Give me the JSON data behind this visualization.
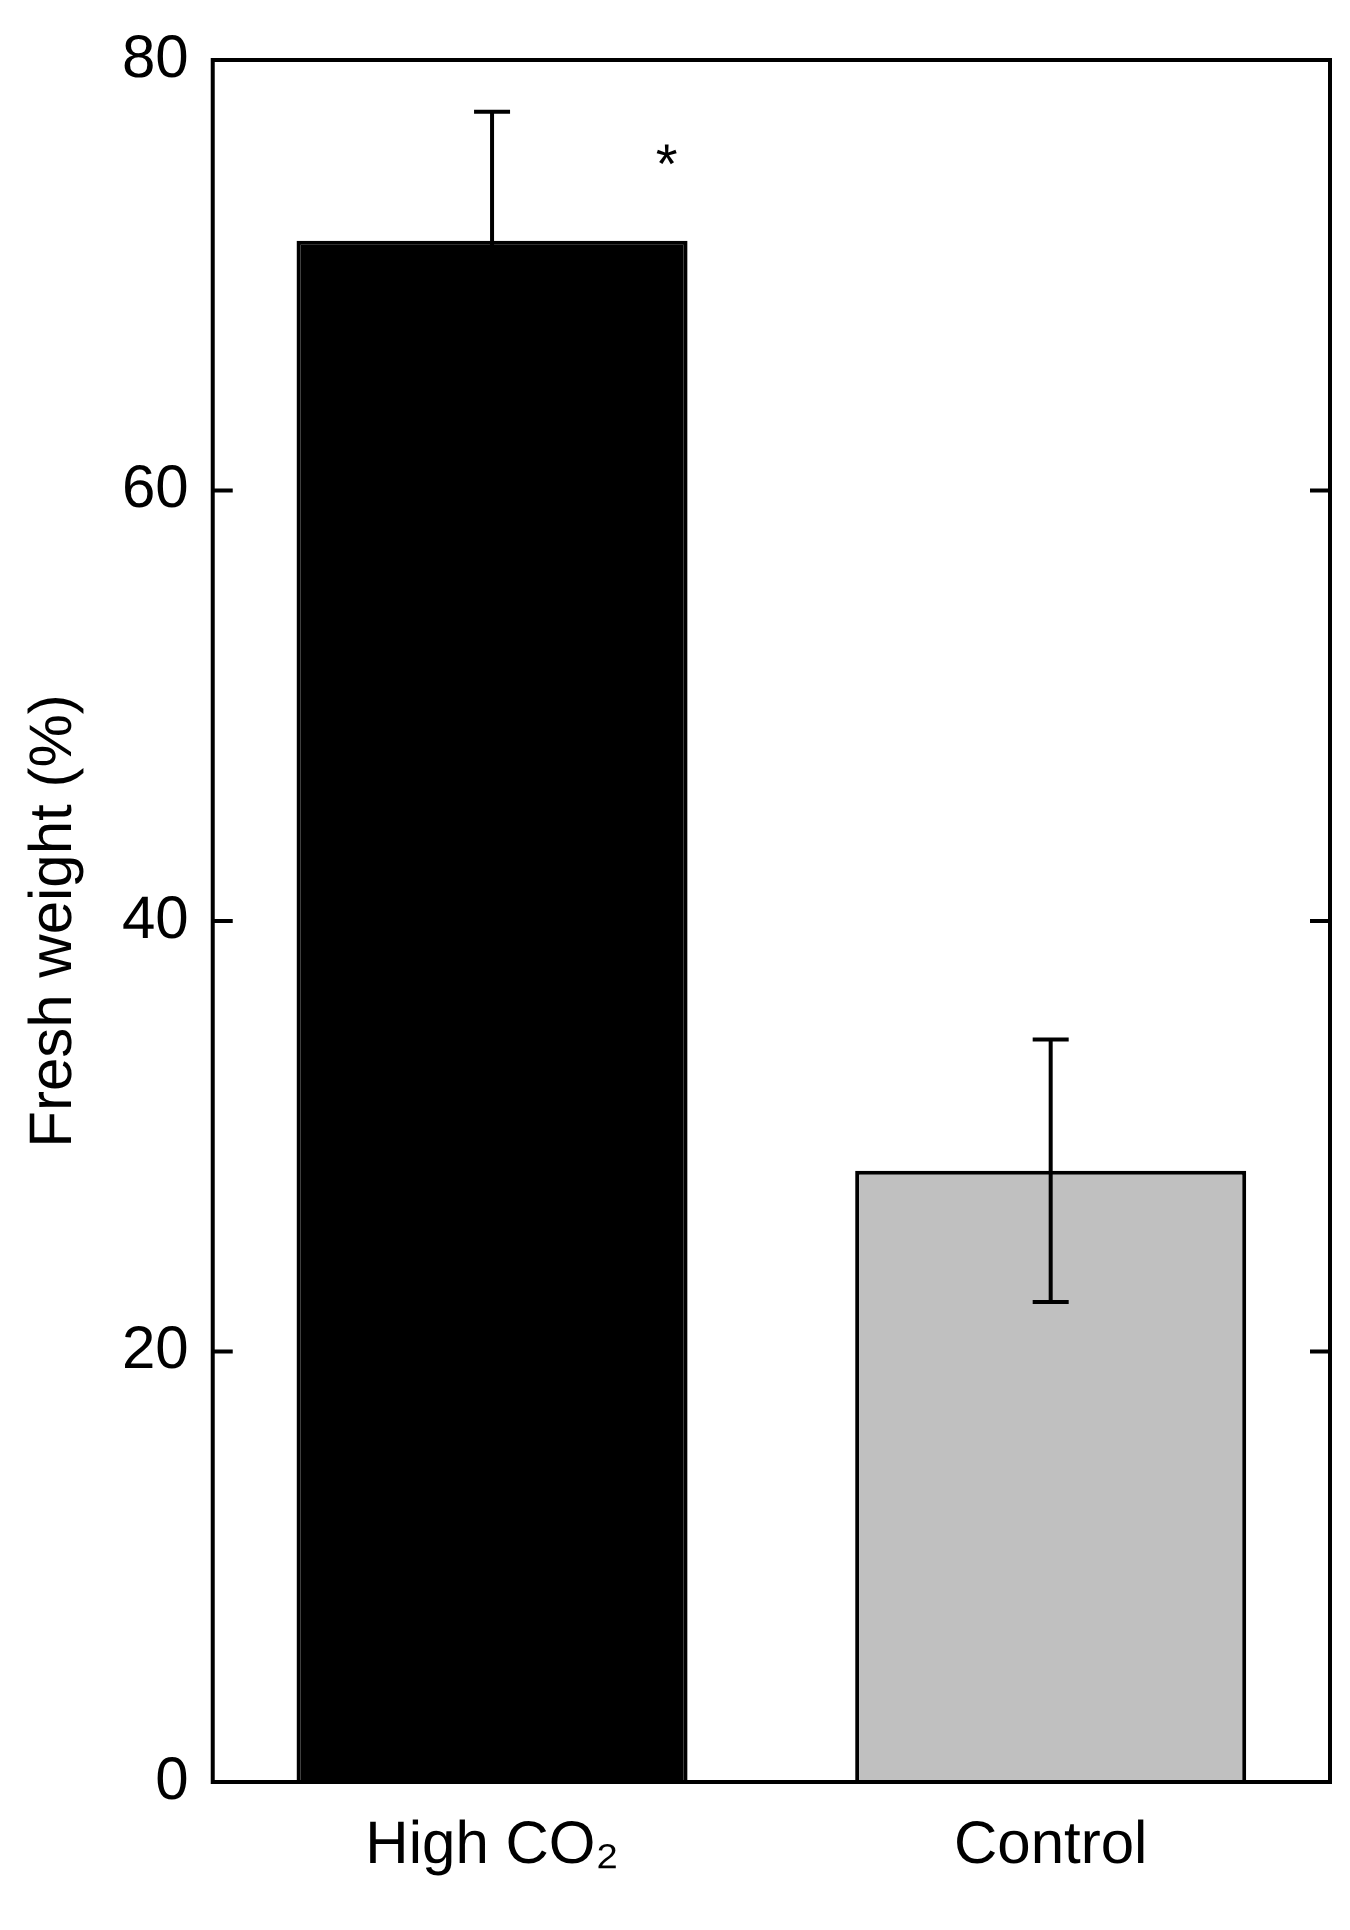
{
  "chart_data": {
    "type": "bar",
    "ylabel": "Fresh weight (%)",
    "categories": [
      "High CO₂",
      "Control"
    ],
    "values": [
      71.6,
      28.4
    ],
    "colors": [
      "#000000",
      "#c0c0c0"
    ],
    "errors": [
      6,
      6.1
    ],
    "ylim": [
      0,
      80
    ],
    "yticks": [
      0,
      20,
      40,
      60,
      80
    ],
    "grid": false,
    "legend": false,
    "annotations": [
      "*"
    ]
  }
}
